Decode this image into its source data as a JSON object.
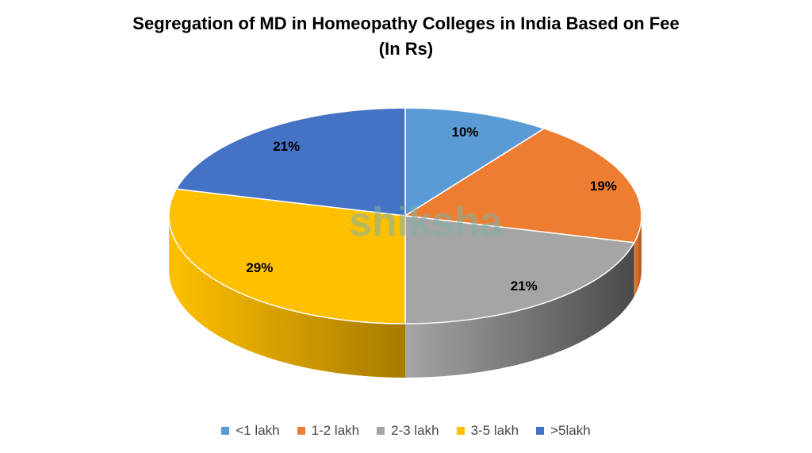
{
  "chart_data": {
    "type": "pie",
    "title": "Segregation of MD in Homeopathy Colleges in India Based on Fee",
    "subtitle": "(In Rs)",
    "categories": [
      "<1 lakh",
      "1-2 lakh",
      "2-3 lakh",
      "3-5 lakh",
      ">5lakh"
    ],
    "values": [
      10,
      19,
      21,
      29,
      21
    ],
    "labels": [
      "10%",
      "19%",
      "21%",
      "29%",
      "21%"
    ],
    "colors": [
      "#5B9BD5",
      "#ED7D31",
      "#A5A5A5",
      "#FFC000",
      "#4472C4"
    ],
    "side_colors": [
      "#3f72a3",
      "#a9561f",
      "#4a4a4a",
      "#a87a00",
      "#2f5597"
    ],
    "legend_position": "bottom",
    "style": "3d"
  },
  "watermark": "shiksha"
}
